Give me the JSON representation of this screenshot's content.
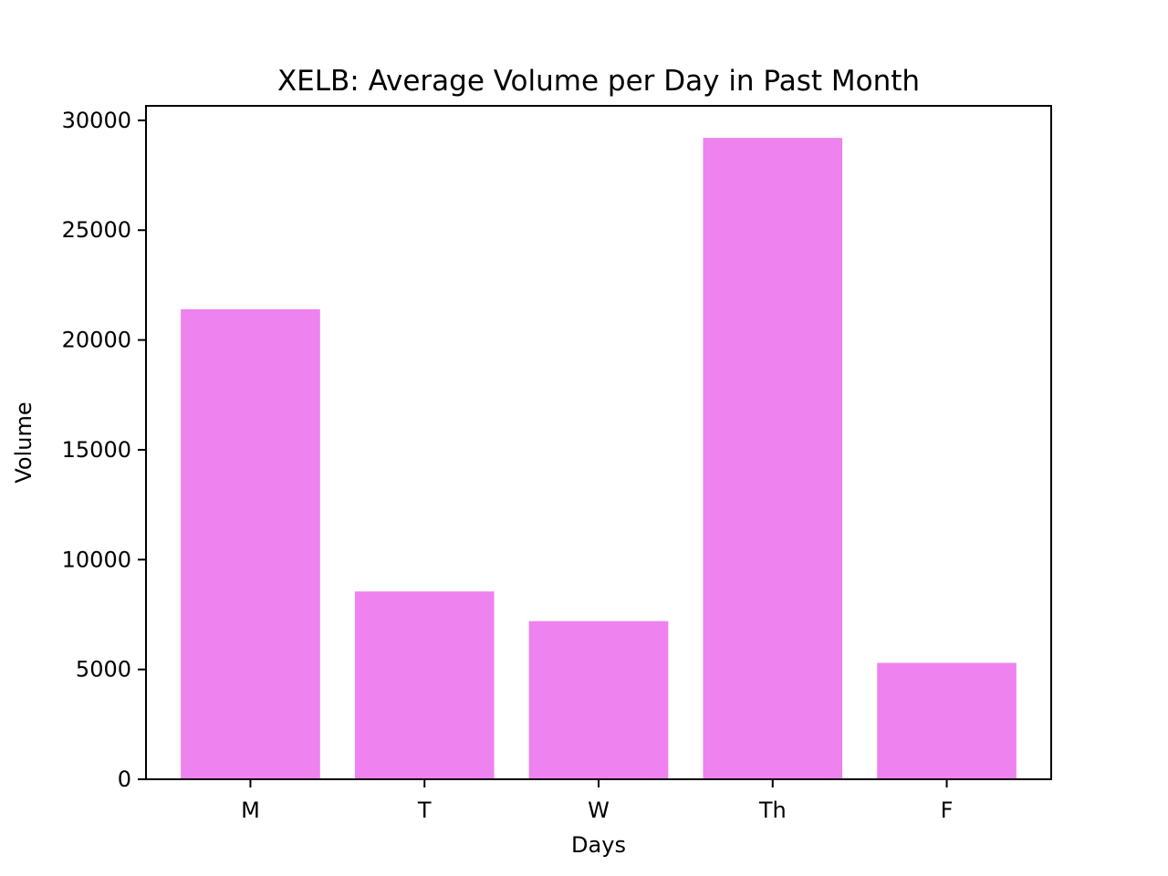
{
  "chart_data": {
    "type": "bar",
    "title": "XELB: Average Volume per Day in Past Month",
    "xlabel": "Days",
    "ylabel": "Volume",
    "categories": [
      "M",
      "T",
      "W",
      "Th",
      "F"
    ],
    "values": [
      21400,
      8550,
      7200,
      29200,
      5300
    ],
    "ylim": [
      0,
      30660
    ],
    "yticks": [
      0,
      5000,
      10000,
      15000,
      20000,
      25000,
      30000
    ],
    "ytick_labels": [
      "0",
      "5000",
      "10000",
      "15000",
      "20000",
      "25000",
      "30000"
    ],
    "bar_color": "#ee82ee",
    "grid": false,
    "legend": "none"
  }
}
